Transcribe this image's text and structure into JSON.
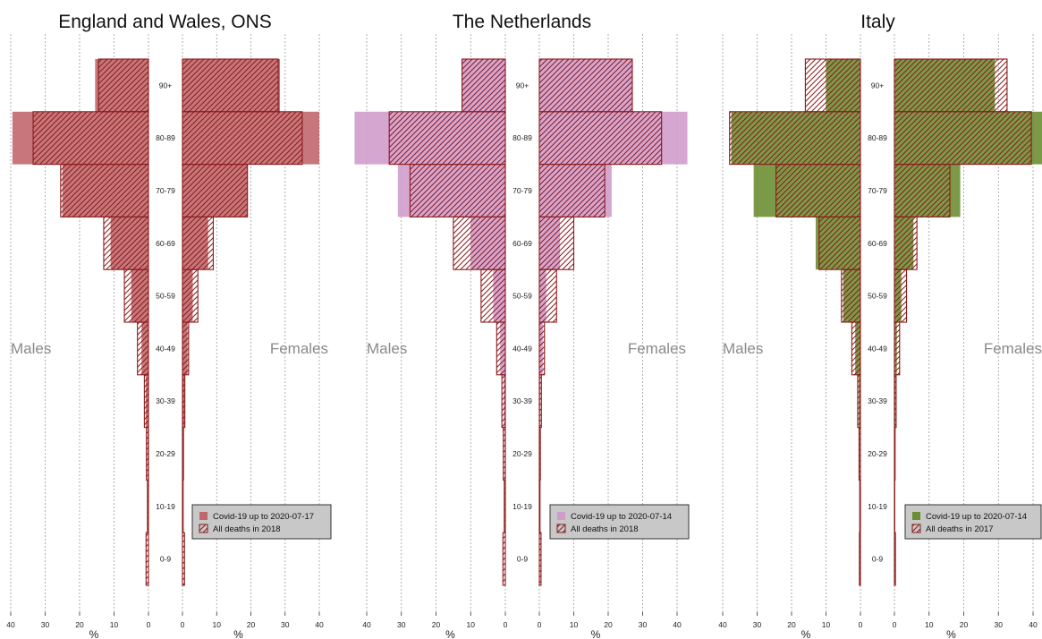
{
  "chart_data": [
    {
      "type": "bar",
      "title": "England and Wales, ONS",
      "left_label": "Males",
      "right_label": "Females",
      "xlabel": "%",
      "xlim": [
        0,
        40
      ],
      "x_ticks": [
        "40",
        "30",
        "20",
        "10",
        "0"
      ],
      "x_ticks_right": [
        "0",
        "10",
        "20",
        "30",
        "40"
      ],
      "grid": true,
      "legend_position": "bottom-right",
      "color": "#c1686d",
      "hatch_color": "#8b1a1a",
      "categories": [
        "0-9",
        "10-19",
        "20-29",
        "30-39",
        "40-49",
        "50-59",
        "60-69",
        "70-79",
        "80-89",
        "90+"
      ],
      "series": [
        {
          "name": "Covid-19 up to 2020-07-17",
          "style": "filled",
          "males": [
            0.1,
            0.1,
            0.3,
            0.8,
            2.0,
            5.0,
            11.0,
            25.0,
            39.5,
            15.5
          ],
          "females": [
            0.1,
            0.1,
            0.2,
            0.6,
            1.5,
            3.0,
            7.5,
            19.0,
            40.0,
            28.5
          ]
        },
        {
          "name": "All deaths in 2018",
          "style": "hatched",
          "males": [
            0.7,
            0.3,
            0.6,
            1.2,
            3.2,
            7.0,
            13.0,
            25.5,
            33.5,
            14.5
          ],
          "females": [
            0.6,
            0.2,
            0.3,
            0.7,
            1.8,
            4.5,
            9.0,
            19.0,
            35.0,
            28.0
          ]
        }
      ]
    },
    {
      "type": "bar",
      "title": "The Netherlands",
      "left_label": "Males",
      "right_label": "Females",
      "xlabel": "%",
      "xlim": [
        0,
        40
      ],
      "x_ticks": [
        "40",
        "30",
        "20",
        "10",
        "0"
      ],
      "x_ticks_right": [
        "0",
        "10",
        "20",
        "30",
        "40"
      ],
      "grid": true,
      "legend_position": "bottom-right",
      "color": "#cf9ccb",
      "hatch_color": "#8b1a1a",
      "categories": [
        "0-9",
        "10-19",
        "20-29",
        "30-39",
        "40-49",
        "50-59",
        "60-69",
        "70-79",
        "80-89",
        "90+"
      ],
      "series": [
        {
          "name": "Covid-19 up to 2020-07-14",
          "style": "filled",
          "males": [
            0.0,
            0.1,
            0.2,
            0.5,
            1.5,
            3.5,
            10.0,
            31.0,
            43.5,
            12.5
          ],
          "females": [
            0.0,
            0.0,
            0.1,
            0.3,
            1.0,
            2.0,
            6.0,
            21.0,
            43.0,
            27.0
          ]
        },
        {
          "name": "All deaths in 2018",
          "style": "hatched",
          "males": [
            0.7,
            0.3,
            0.6,
            1.0,
            2.5,
            7.0,
            15.0,
            27.5,
            33.5,
            12.5
          ],
          "females": [
            0.5,
            0.2,
            0.3,
            0.6,
            1.5,
            5.0,
            10.0,
            19.0,
            35.5,
            27.0
          ]
        }
      ]
    },
    {
      "type": "bar",
      "title": "Italy",
      "left_label": "Males",
      "right_label": "Females",
      "xlabel": "%",
      "xlim": [
        0,
        40
      ],
      "x_ticks": [
        "40",
        "30",
        "20",
        "10",
        "0"
      ],
      "x_ticks_right": [
        "0",
        "10",
        "20",
        "30",
        "40"
      ],
      "grid": true,
      "legend_position": "bottom-right",
      "color": "#6b8f34",
      "hatch_color": "#8b1a1a",
      "categories": [
        "0-9",
        "10-19",
        "20-29",
        "30-39",
        "40-49",
        "50-59",
        "60-69",
        "70-79",
        "80-89",
        "90+"
      ],
      "series": [
        {
          "name": "Covid-19 up to 2020-07-14",
          "style": "filled",
          "males": [
            0.0,
            0.1,
            0.2,
            0.5,
            1.5,
            5.0,
            13.0,
            31.0,
            37.5,
            10.0
          ],
          "females": [
            0.0,
            0.0,
            0.1,
            0.3,
            0.7,
            2.0,
            5.5,
            19.0,
            43.0,
            29.0
          ]
        },
        {
          "name": "All deaths in 2017",
          "style": "hatched",
          "males": [
            0.3,
            0.2,
            0.4,
            0.8,
            2.5,
            5.5,
            12.0,
            24.5,
            38.0,
            16.0
          ],
          "females": [
            0.3,
            0.1,
            0.2,
            0.5,
            1.5,
            3.5,
            6.5,
            16.0,
            39.5,
            32.5
          ]
        }
      ]
    }
  ]
}
